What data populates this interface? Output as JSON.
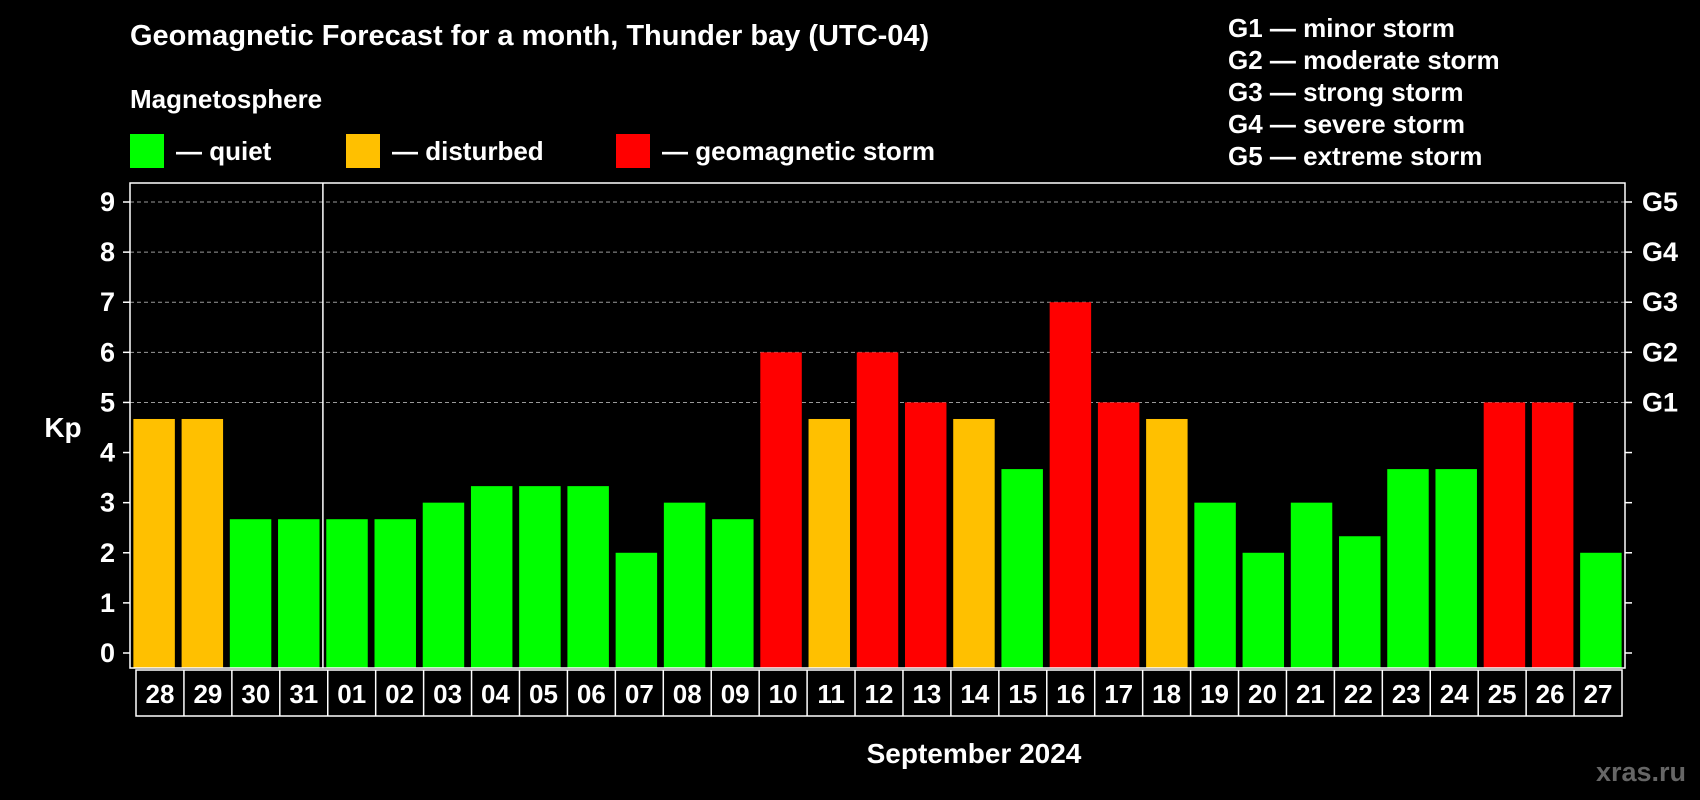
{
  "header": {
    "title": "Geomagnetic Forecast for a month, Thunder bay (UTC-04)",
    "subtitle": "Magnetosphere"
  },
  "legend": [
    {
      "label": "— quiet",
      "color": "#00ff00"
    },
    {
      "label": "— disturbed",
      "color": "#ffc000"
    },
    {
      "label": "— geomagnetic storm",
      "color": "#ff0000"
    }
  ],
  "g_scale": [
    {
      "label": "G1 — minor storm"
    },
    {
      "label": "G2 — moderate storm"
    },
    {
      "label": "G3 — strong storm"
    },
    {
      "label": "G4 — severe storm"
    },
    {
      "label": "G5 — extreme storm"
    }
  ],
  "watermark": "xras.ru",
  "chart_data": {
    "type": "bar",
    "title": "Geomagnetic Forecast for a month, Thunder bay (UTC-04)",
    "ylabel": "Kp",
    "xlabel": "September 2024",
    "ylim": [
      0,
      9
    ],
    "y_ticks": [
      0,
      1,
      2,
      3,
      4,
      5,
      6,
      7,
      8,
      9
    ],
    "right_axis_labels": [
      {
        "kp": 5,
        "label": "G1"
      },
      {
        "kp": 6,
        "label": "G2"
      },
      {
        "kp": 7,
        "label": "G3"
      },
      {
        "kp": 8,
        "label": "G4"
      },
      {
        "kp": 9,
        "label": "G5"
      }
    ],
    "grid": "dashed horizontal at Kp 5 to 9",
    "month_separator_after": "31",
    "categories": [
      "28",
      "29",
      "30",
      "31",
      "01",
      "02",
      "03",
      "04",
      "05",
      "06",
      "07",
      "08",
      "09",
      "10",
      "11",
      "12",
      "13",
      "14",
      "15",
      "16",
      "17",
      "18",
      "19",
      "20",
      "21",
      "22",
      "23",
      "24",
      "25",
      "26",
      "27"
    ],
    "values": [
      4.67,
      4.67,
      2.67,
      2.67,
      2.67,
      2.67,
      3.0,
      3.33,
      3.33,
      3.33,
      2.0,
      3.0,
      2.67,
      6.0,
      4.67,
      6.0,
      5.0,
      4.67,
      3.67,
      7.0,
      5.0,
      4.67,
      3.0,
      2.0,
      3.0,
      2.33,
      3.67,
      3.67,
      5.0,
      5.0,
      2.0
    ],
    "levels": [
      "disturbed",
      "disturbed",
      "quiet",
      "quiet",
      "quiet",
      "quiet",
      "quiet",
      "quiet",
      "quiet",
      "quiet",
      "quiet",
      "quiet",
      "quiet",
      "storm",
      "disturbed",
      "storm",
      "storm",
      "disturbed",
      "quiet",
      "storm",
      "storm",
      "disturbed",
      "quiet",
      "quiet",
      "quiet",
      "quiet",
      "quiet",
      "quiet",
      "storm",
      "storm",
      "quiet"
    ],
    "colors": {
      "quiet": "#00ff00",
      "disturbed": "#ffc000",
      "storm": "#ff0000"
    }
  }
}
